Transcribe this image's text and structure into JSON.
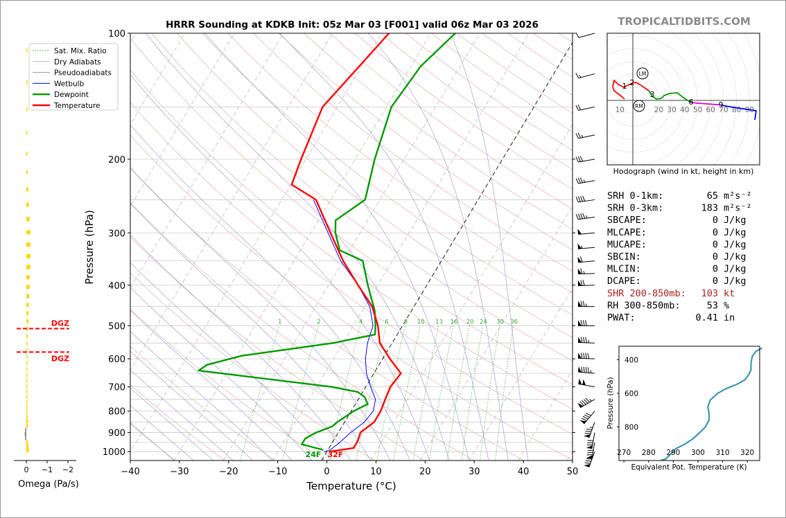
{
  "title": "HRRR Sounding at KDKB Init: 05z Mar 03 [F001] valid 06z Mar 03 2026",
  "watermark": "TROPICALTIDBITS.COM",
  "colors": {
    "temperature": "#ff0000",
    "dewpoint": "#009900",
    "wetbulb": "#0000ff",
    "dry_adiabat": "#e0a0a0",
    "moist_adiabat": "#9090d0",
    "mixing_ratio": "#33aa33",
    "isobar": "#cccccc",
    "isotherm": "#bbbbbb",
    "omega_bar": "#ffd700",
    "dgz": "#ff0000",
    "shear_text": "#aa2222",
    "theta_e": "#3b97b0",
    "watermark": "#8a8a8a"
  },
  "chart_data": [
    {
      "id": "skewt",
      "type": "line",
      "xlabel": "Temperature (°C)",
      "ylabel": "Pressure (hPa)",
      "xlim": [
        -40,
        50
      ],
      "ylim": [
        1050,
        100
      ],
      "y_scale": "log",
      "x_ticks": [
        "−40",
        "−30",
        "−20",
        "−10",
        "0",
        "10",
        "20",
        "30",
        "40",
        "50"
      ],
      "y_ticks": [
        "100",
        "200",
        "300",
        "400",
        "500",
        "600",
        "700",
        "800",
        "900",
        "1000"
      ],
      "legend_position": "top-left",
      "legend": [
        "Sat. Mix. Ratio",
        "Dry Adiabats",
        "Pseudoadiabats",
        "Wetbulb",
        "Dewpoint",
        "Temperature"
      ],
      "mixing_ratio_labels": [
        "1",
        "2",
        "4",
        "6",
        "8",
        "10",
        "13",
        "16",
        "20",
        "24",
        "30",
        "36"
      ],
      "surface_labels": {
        "dewpoint": "24F",
        "temperature": "32F"
      },
      "temperature": [
        [
          1000,
          0.5
        ],
        [
          980,
          5
        ],
        [
          950,
          5
        ],
        [
          925,
          4.8
        ],
        [
          900,
          4.5
        ],
        [
          850,
          6
        ],
        [
          800,
          6
        ],
        [
          750,
          5.5
        ],
        [
          700,
          5.0
        ],
        [
          650,
          5.5
        ],
        [
          600,
          1.5
        ],
        [
          550,
          -2.5
        ],
        [
          500,
          -5.0
        ],
        [
          450,
          -8.5
        ],
        [
          400,
          -14
        ],
        [
          350,
          -20
        ],
        [
          300,
          -26
        ],
        [
          250,
          -33
        ],
        [
          230,
          -39.8
        ],
        [
          200,
          -41
        ],
        [
          150,
          -43
        ],
        [
          120,
          -40.5
        ],
        [
          100,
          -38.5
        ]
      ],
      "dewpoint": [
        [
          990,
          -1
        ],
        [
          960,
          -6
        ],
        [
          930,
          -6
        ],
        [
          900,
          -4.5
        ],
        [
          870,
          -2
        ],
        [
          850,
          -1.5
        ],
        [
          800,
          0.5
        ],
        [
          770,
          2.5
        ],
        [
          740,
          1
        ],
        [
          720,
          -1
        ],
        [
          700,
          -7
        ],
        [
          640,
          -36
        ],
        [
          620,
          -35
        ],
        [
          590,
          -29
        ],
        [
          550,
          -12.0
        ],
        [
          525,
          -4.5
        ],
        [
          500,
          -5.5
        ],
        [
          460,
          -7.5
        ],
        [
          400,
          -12
        ],
        [
          350,
          -16
        ],
        [
          330,
          -22
        ],
        [
          300,
          -25
        ],
        [
          280,
          -26.5
        ],
        [
          250,
          -23
        ],
        [
          200,
          -26
        ],
        [
          150,
          -29
        ],
        [
          120,
          -28
        ],
        [
          100,
          -25
        ]
      ],
      "wetbulb": [
        [
          1000,
          -0.5
        ],
        [
          990,
          0.5
        ],
        [
          950,
          1.5
        ],
        [
          900,
          2.5
        ],
        [
          850,
          4
        ],
        [
          800,
          4.5
        ],
        [
          750,
          3.5
        ],
        [
          700,
          1
        ],
        [
          650,
          -1.5
        ],
        [
          600,
          -3.5
        ],
        [
          550,
          -5
        ],
        [
          500,
          -6.0
        ],
        [
          450,
          -9
        ],
        [
          400,
          -14
        ],
        [
          350,
          -20.5
        ],
        [
          300,
          -26.5
        ],
        [
          250,
          -33.5
        ]
      ],
      "winds_kt": [
        10,
        15,
        20,
        25,
        30,
        35,
        40,
        45,
        50,
        55,
        60,
        65,
        70,
        75,
        80,
        85,
        90,
        95,
        100,
        95,
        90,
        85,
        80
      ]
    },
    {
      "id": "omega",
      "type": "bar",
      "xlabel": "Omega (Pa/s)",
      "x_ticks": [
        "0",
        "−1",
        "−2"
      ],
      "dgz_label": "DGZ",
      "dgz_hpa": [
        508,
        578
      ]
    },
    {
      "id": "hodograph",
      "type": "line",
      "caption": "Hodograph (wind in kt, height in km)",
      "ring_labels": [
        "10",
        "20",
        "30",
        "40",
        "50",
        "60",
        "70",
        "80",
        "90"
      ],
      "storm_motion_labels": [
        "LM",
        "RM"
      ],
      "height_labels": [
        "1",
        "2",
        "3",
        "6",
        "9"
      ]
    },
    {
      "id": "theta_e",
      "type": "line",
      "xlabel": "Equivalent Pot. Temperature (K)",
      "ylabel": "Pressure (hPa)",
      "x_ticks": [
        "270",
        "280",
        "290",
        "300",
        "310",
        "320"
      ],
      "y_ticks": [
        "400",
        "600",
        "800"
      ],
      "xlim": [
        268,
        325
      ],
      "ylim": [
        1000,
        320
      ],
      "values": [
        [
          1000,
          285
        ],
        [
          990,
          287
        ],
        [
          960,
          289
        ],
        [
          930,
          291
        ],
        [
          900,
          295
        ],
        [
          870,
          298
        ],
        [
          830,
          301
        ],
        [
          800,
          303
        ],
        [
          760,
          304.5
        ],
        [
          720,
          304.5
        ],
        [
          680,
          304
        ],
        [
          640,
          305
        ],
        [
          600,
          308
        ],
        [
          575,
          311
        ],
        [
          545,
          316
        ],
        [
          520,
          319
        ],
        [
          490,
          320.5
        ],
        [
          460,
          321.5
        ],
        [
          420,
          321.5
        ],
        [
          380,
          322
        ],
        [
          350,
          323.5
        ],
        [
          330,
          326
        ]
      ]
    }
  ],
  "stats": [
    {
      "label": "SRH 0-1km:",
      "value": "65",
      "unit": "m²s⁻²",
      "highlight": false
    },
    {
      "label": "SRH 0-3km:",
      "value": "183",
      "unit": "m²s⁻²",
      "highlight": false
    },
    {
      "label": "SBCAPE:",
      "value": "0",
      "unit": "J/kg",
      "highlight": false
    },
    {
      "label": "MLCAPE:",
      "value": "0",
      "unit": "J/kg",
      "highlight": false
    },
    {
      "label": "MUCAPE:",
      "value": "0",
      "unit": "J/kg",
      "highlight": false
    },
    {
      "label": "SBCIN:",
      "value": "0",
      "unit": "J/kg",
      "highlight": false
    },
    {
      "label": "MLCIN:",
      "value": "0",
      "unit": "J/kg",
      "highlight": false
    },
    {
      "label": "DCAPE:",
      "value": "0",
      "unit": "J/kg",
      "highlight": false
    },
    {
      "label": "SHR 200-850mb:",
      "value": "103",
      "unit": "kt",
      "highlight": true
    },
    {
      "label": "RH 300-850mb:",
      "value": "53",
      "unit": "%",
      "highlight": false
    },
    {
      "label": "PWAT:",
      "value": "0.41",
      "unit": "in",
      "highlight": false
    }
  ]
}
